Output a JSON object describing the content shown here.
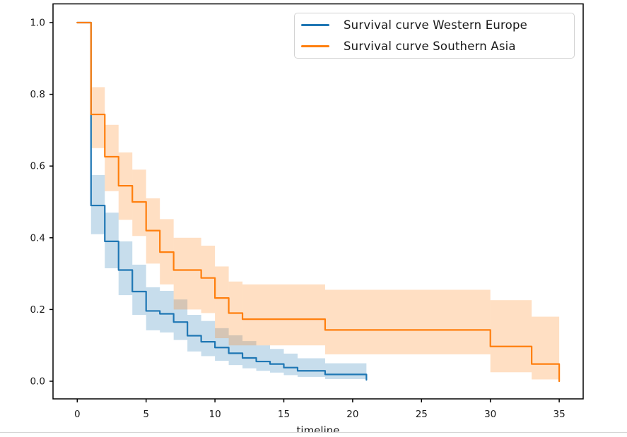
{
  "chart_data": {
    "type": "line",
    "chart_style": "kaplan_meier_step_with_ci",
    "title": "",
    "xlabel": "timeline",
    "ylabel": "",
    "xlim": [
      -1.76,
      36.76
    ],
    "ylim": [
      -0.05,
      1.05
    ],
    "xticks": [
      "0",
      "5",
      "10",
      "15",
      "20",
      "25",
      "30",
      "35"
    ],
    "xtick_values": [
      0,
      5,
      10,
      15,
      20,
      25,
      30,
      35
    ],
    "yticks": [
      "0.0",
      "0.2",
      "0.4",
      "0.6",
      "0.8",
      "1.0"
    ],
    "ytick_values": [
      0,
      0.2,
      0.4,
      0.6,
      0.8,
      1.0
    ],
    "grid": false,
    "legend_position": "upper right",
    "style": {
      "background": "#ffffff",
      "spine_color": "#000000",
      "tick_label_color": "#1a1a1a",
      "ci_opacity": 0.25,
      "line_width": 2.2
    },
    "series": [
      {
        "name": "Survival curve Western Europe",
        "color": "#1f77b4",
        "steps": [
          [
            0,
            1.0
          ],
          [
            1,
            0.49
          ],
          [
            2,
            0.39
          ],
          [
            3,
            0.31
          ],
          [
            4,
            0.25
          ],
          [
            5,
            0.196
          ],
          [
            6,
            0.188
          ],
          [
            7,
            0.165
          ],
          [
            8,
            0.127
          ],
          [
            9,
            0.11
          ],
          [
            10,
            0.094
          ],
          [
            11,
            0.078
          ],
          [
            12,
            0.065
          ],
          [
            13,
            0.055
          ],
          [
            14,
            0.048
          ],
          [
            15,
            0.038
          ],
          [
            16,
            0.029
          ],
          [
            18,
            0.019
          ],
          [
            21,
            0.004
          ]
        ],
        "ci_bands": [
          [
            1,
            2,
            0.41,
            0.575
          ],
          [
            2,
            3,
            0.315,
            0.47
          ],
          [
            3,
            4,
            0.24,
            0.39
          ],
          [
            4,
            5,
            0.185,
            0.325
          ],
          [
            5,
            6,
            0.142,
            0.262
          ],
          [
            6,
            7,
            0.136,
            0.252
          ],
          [
            7,
            8,
            0.115,
            0.228
          ],
          [
            8,
            9,
            0.083,
            0.185
          ],
          [
            9,
            10,
            0.07,
            0.168
          ],
          [
            10,
            11,
            0.057,
            0.148
          ],
          [
            11,
            12,
            0.045,
            0.128
          ],
          [
            12,
            13,
            0.036,
            0.112
          ],
          [
            13,
            14,
            0.029,
            0.1
          ],
          [
            14,
            15,
            0.024,
            0.09
          ],
          [
            15,
            16,
            0.017,
            0.077
          ],
          [
            16,
            18,
            0.012,
            0.064
          ],
          [
            18,
            21,
            0.006,
            0.05
          ]
        ]
      },
      {
        "name": "Survival curve Southern Asia",
        "color": "#ff7f0e",
        "steps": [
          [
            0,
            1.0
          ],
          [
            1,
            0.744
          ],
          [
            2,
            0.626
          ],
          [
            3,
            0.545
          ],
          [
            4,
            0.5
          ],
          [
            5,
            0.42
          ],
          [
            6,
            0.36
          ],
          [
            7,
            0.31
          ],
          [
            9,
            0.288
          ],
          [
            10,
            0.232
          ],
          [
            11,
            0.19
          ],
          [
            12,
            0.173
          ],
          [
            18,
            0.143
          ],
          [
            30,
            0.097
          ],
          [
            33,
            0.048
          ],
          [
            35,
            0.0
          ]
        ],
        "ci_bands": [
          [
            1,
            2,
            0.65,
            0.82
          ],
          [
            2,
            3,
            0.53,
            0.715
          ],
          [
            3,
            4,
            0.45,
            0.638
          ],
          [
            4,
            5,
            0.405,
            0.59
          ],
          [
            5,
            6,
            0.328,
            0.51
          ],
          [
            6,
            7,
            0.27,
            0.452
          ],
          [
            7,
            9,
            0.2,
            0.4
          ],
          [
            9,
            10,
            0.19,
            0.378
          ],
          [
            10,
            11,
            0.12,
            0.32
          ],
          [
            11,
            12,
            0.1,
            0.278
          ],
          [
            12,
            18,
            0.1,
            0.27
          ],
          [
            18,
            30,
            0.075,
            0.255
          ],
          [
            30,
            33,
            0.025,
            0.226
          ],
          [
            33,
            35,
            0.005,
            0.18
          ]
        ]
      }
    ]
  }
}
